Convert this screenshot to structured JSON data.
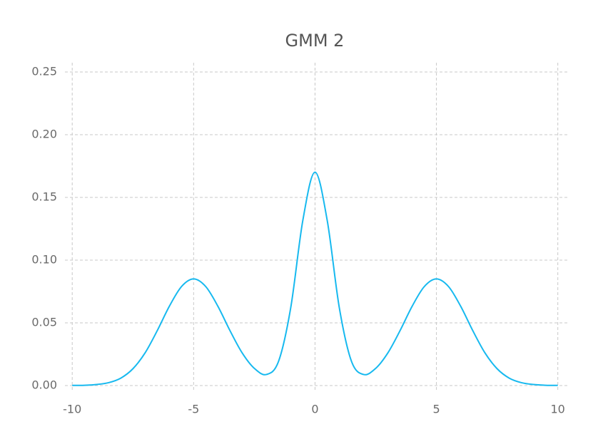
{
  "chart_data": {
    "type": "line",
    "title": "GMM 2",
    "x": [
      -10,
      -9.5,
      -9,
      -8.5,
      -8,
      -7.5,
      -7,
      -6.5,
      -6,
      -5.5,
      -5,
      -4.5,
      -4,
      -3.5,
      -3,
      -2.5,
      -2,
      -1.5,
      -1,
      -0.5,
      0,
      0.5,
      1,
      1.5,
      2,
      2.5,
      3,
      3.5,
      4,
      4.5,
      5,
      5.5,
      6,
      6.5,
      7,
      7.5,
      8,
      8.5,
      9,
      9.5,
      10
    ],
    "series": [
      {
        "color": "#17b9ef",
        "values": [
          0.0001,
          0.0002,
          0.0008,
          0.0023,
          0.0059,
          0.0134,
          0.026,
          0.0437,
          0.0632,
          0.0789,
          0.085,
          0.0789,
          0.0632,
          0.0437,
          0.026,
          0.0137,
          0.0088,
          0.0194,
          0.0621,
          0.1319,
          0.1701,
          0.1319,
          0.0621,
          0.0194,
          0.0088,
          0.0137,
          0.026,
          0.0437,
          0.0632,
          0.0789,
          0.085,
          0.0789,
          0.0632,
          0.0437,
          0.026,
          0.0134,
          0.0059,
          0.0023,
          0.0008,
          0.0002,
          0.0001
        ]
      }
    ],
    "xlim": [
      -10.3,
      10.45
    ],
    "xticks": [
      -10,
      -5,
      0,
      5,
      10
    ],
    "ylim": [
      -0.004,
      0.2574
    ],
    "yticks": [
      {
        "value": 0,
        "label": "0.00"
      },
      0.05,
      {
        "value": 0.1,
        "label": "0.10"
      },
      0.15,
      {
        "value": 0.2,
        "label": "0.20"
      },
      0.25
    ],
    "grid": true
  }
}
